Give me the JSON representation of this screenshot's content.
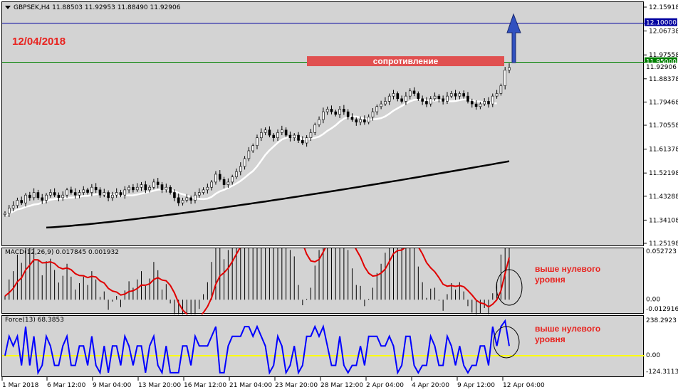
{
  "symbol": {
    "title": "GBPSEK,H4  11.88503 11.92953 11.88490 11.92906"
  },
  "annotations": {
    "date": "12/04/2018",
    "resistance": "сопротивление",
    "macd_note_line1": "выше нулевого",
    "macd_note_line2": "уровня",
    "force_note_line1": "выше нулевого",
    "force_note_line2": "уровня"
  },
  "price_axis": {
    "labels": [
      "12.15918",
      "12.06738",
      "11.97558",
      "11.88378",
      "11.79468",
      "11.70558",
      "11.61378",
      "11.52198",
      "11.43288",
      "11.34108",
      "11.25198"
    ],
    "levels": {
      "blue_line": "12.10000",
      "green_line": "11.95000",
      "current": "11.92906"
    }
  },
  "macd": {
    "title": "MACD(12,26,9) 0.017845 0.001932",
    "axis_labels": [
      "0.052723",
      "0.00",
      "-0.012916"
    ]
  },
  "force": {
    "title": "Force(13) 68.3853",
    "axis_labels": [
      "238.2923",
      "0.00",
      "-124.3113"
    ]
  },
  "date_axis": [
    "1 Mar 2018",
    "6 Mar 12:00",
    "9 Mar 04:00",
    "13 Mar 20:00",
    "16 Mar 12:00",
    "21 Mar 04:00",
    "23 Mar 20:00",
    "28 Mar 12:00",
    "2 Apr 04:00",
    "4 Apr 20:00",
    "9 Apr 12:00",
    "12 Apr 04:00"
  ],
  "colors": {
    "panel_bg": "#d3d3d3",
    "macd_signal": "#e00000",
    "force_line": "#0000ff",
    "zero_line": "#ffff00",
    "blue_level": "#0000a0",
    "green_level": "#008000",
    "sma_fast": "#ffffff",
    "sma_slow": "#000000",
    "arrow": "#3050c0"
  },
  "chart_data": {
    "type": "candlestick",
    "symbol": "GBPSEK",
    "timeframe": "H4",
    "ylim": [
      11.25198,
      12.15918
    ],
    "close_series": [
      11.37,
      11.39,
      11.4,
      11.42,
      11.41,
      11.44,
      11.43,
      11.45,
      11.43,
      11.42,
      11.44,
      11.45,
      11.44,
      11.43,
      11.44,
      11.46,
      11.45,
      11.44,
      11.45,
      11.46,
      11.45,
      11.47,
      11.46,
      11.44,
      11.45,
      11.43,
      11.44,
      11.45,
      11.44,
      11.46,
      11.47,
      11.46,
      11.47,
      11.48,
      11.46,
      11.47,
      11.49,
      11.48,
      11.46,
      11.47,
      11.45,
      11.43,
      11.41,
      11.42,
      11.43,
      11.42,
      11.44,
      11.45,
      11.46,
      11.47,
      11.49,
      11.52,
      11.5,
      11.48,
      11.49,
      11.51,
      11.53,
      11.55,
      11.58,
      11.61,
      11.63,
      11.66,
      11.68,
      11.69,
      11.67,
      11.66,
      11.68,
      11.69,
      11.67,
      11.66,
      11.67,
      11.65,
      11.64,
      11.66,
      11.68,
      11.71,
      11.73,
      11.76,
      11.77,
      11.76,
      11.75,
      11.77,
      11.76,
      11.74,
      11.73,
      11.72,
      11.73,
      11.72,
      11.74,
      11.76,
      11.78,
      11.79,
      11.8,
      11.82,
      11.83,
      11.81,
      11.8,
      11.82,
      11.84,
      11.83,
      11.81,
      11.8,
      11.79,
      11.81,
      11.82,
      11.81,
      11.8,
      11.82,
      11.83,
      11.82,
      11.83,
      11.82,
      11.8,
      11.79,
      11.78,
      11.79,
      11.8,
      11.79,
      11.82,
      11.83,
      11.86,
      11.92,
      11.93
    ],
    "sma_fast_label": "white moving average",
    "sma_slow_label": "black moving average",
    "levels": [
      12.1,
      11.95
    ]
  }
}
